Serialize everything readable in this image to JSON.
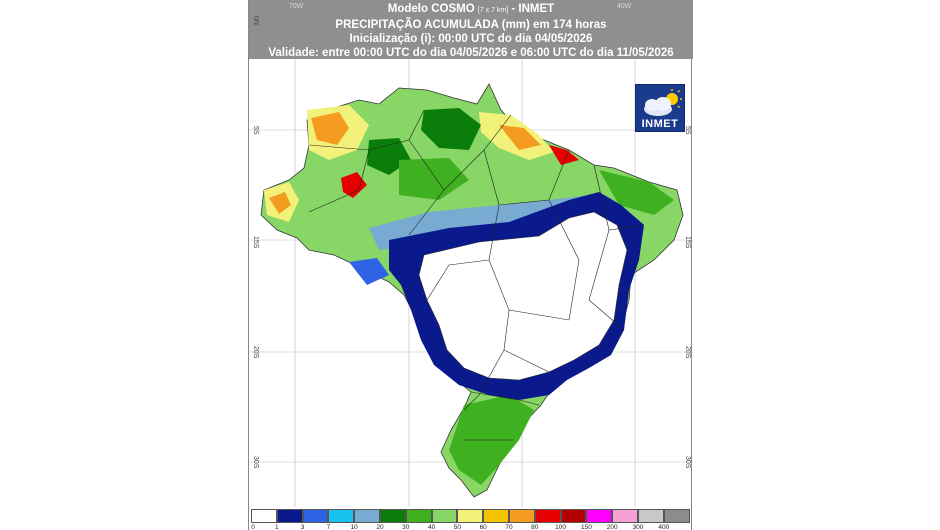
{
  "header": {
    "line1_model": "Modelo COSMO",
    "line1_res": "[7 x 7 km]",
    "line1_org": "- INMET",
    "line2": "PRECIPITAÇÃO ACUMULADA (mm) em 174 horas",
    "line3": "Inicialização (i): 00:00 UTC do dia 04/05/2026",
    "line4": "Validade: entre 00:00 UTC do dia 04/05/2026 e 06:00 UTC do dia 11/05/2026"
  },
  "grid_labels": {
    "lon": [
      "70W",
      "40W"
    ],
    "lat": [
      "0N",
      "5S",
      "15S",
      "20S",
      "30S"
    ]
  },
  "logo": {
    "text": "INMET",
    "icon": "cloud-sun-icon",
    "bg": "#1a3a8c"
  },
  "legend": {
    "ticks": [
      "0",
      "1",
      "3",
      "7",
      "10",
      "20",
      "30",
      "40",
      "50",
      "60",
      "70",
      "80",
      "100",
      "150",
      "200",
      "300",
      "400"
    ],
    "colors": [
      "#ffffff",
      "#0a1a8c",
      "#2f63e6",
      "#19c3f0",
      "#78aad2",
      "#0a7d0a",
      "#3fb020",
      "#88d666",
      "#f2f27a",
      "#f5c400",
      "#f39c1f",
      "#e60000",
      "#b40000",
      "#ff00ff",
      "#f5a0d5",
      "#c8c8c8",
      "#8c8c8c"
    ]
  },
  "map_colors": {
    "dark_blue": "#0a1a8c",
    "blue": "#2f63e6",
    "light_blue": "#78aad2",
    "dark_green": "#0a7d0a",
    "green": "#3fb020",
    "light_green": "#88d666",
    "yellow": "#f2f27a",
    "orange": "#f39c1f",
    "red": "#e60000"
  }
}
